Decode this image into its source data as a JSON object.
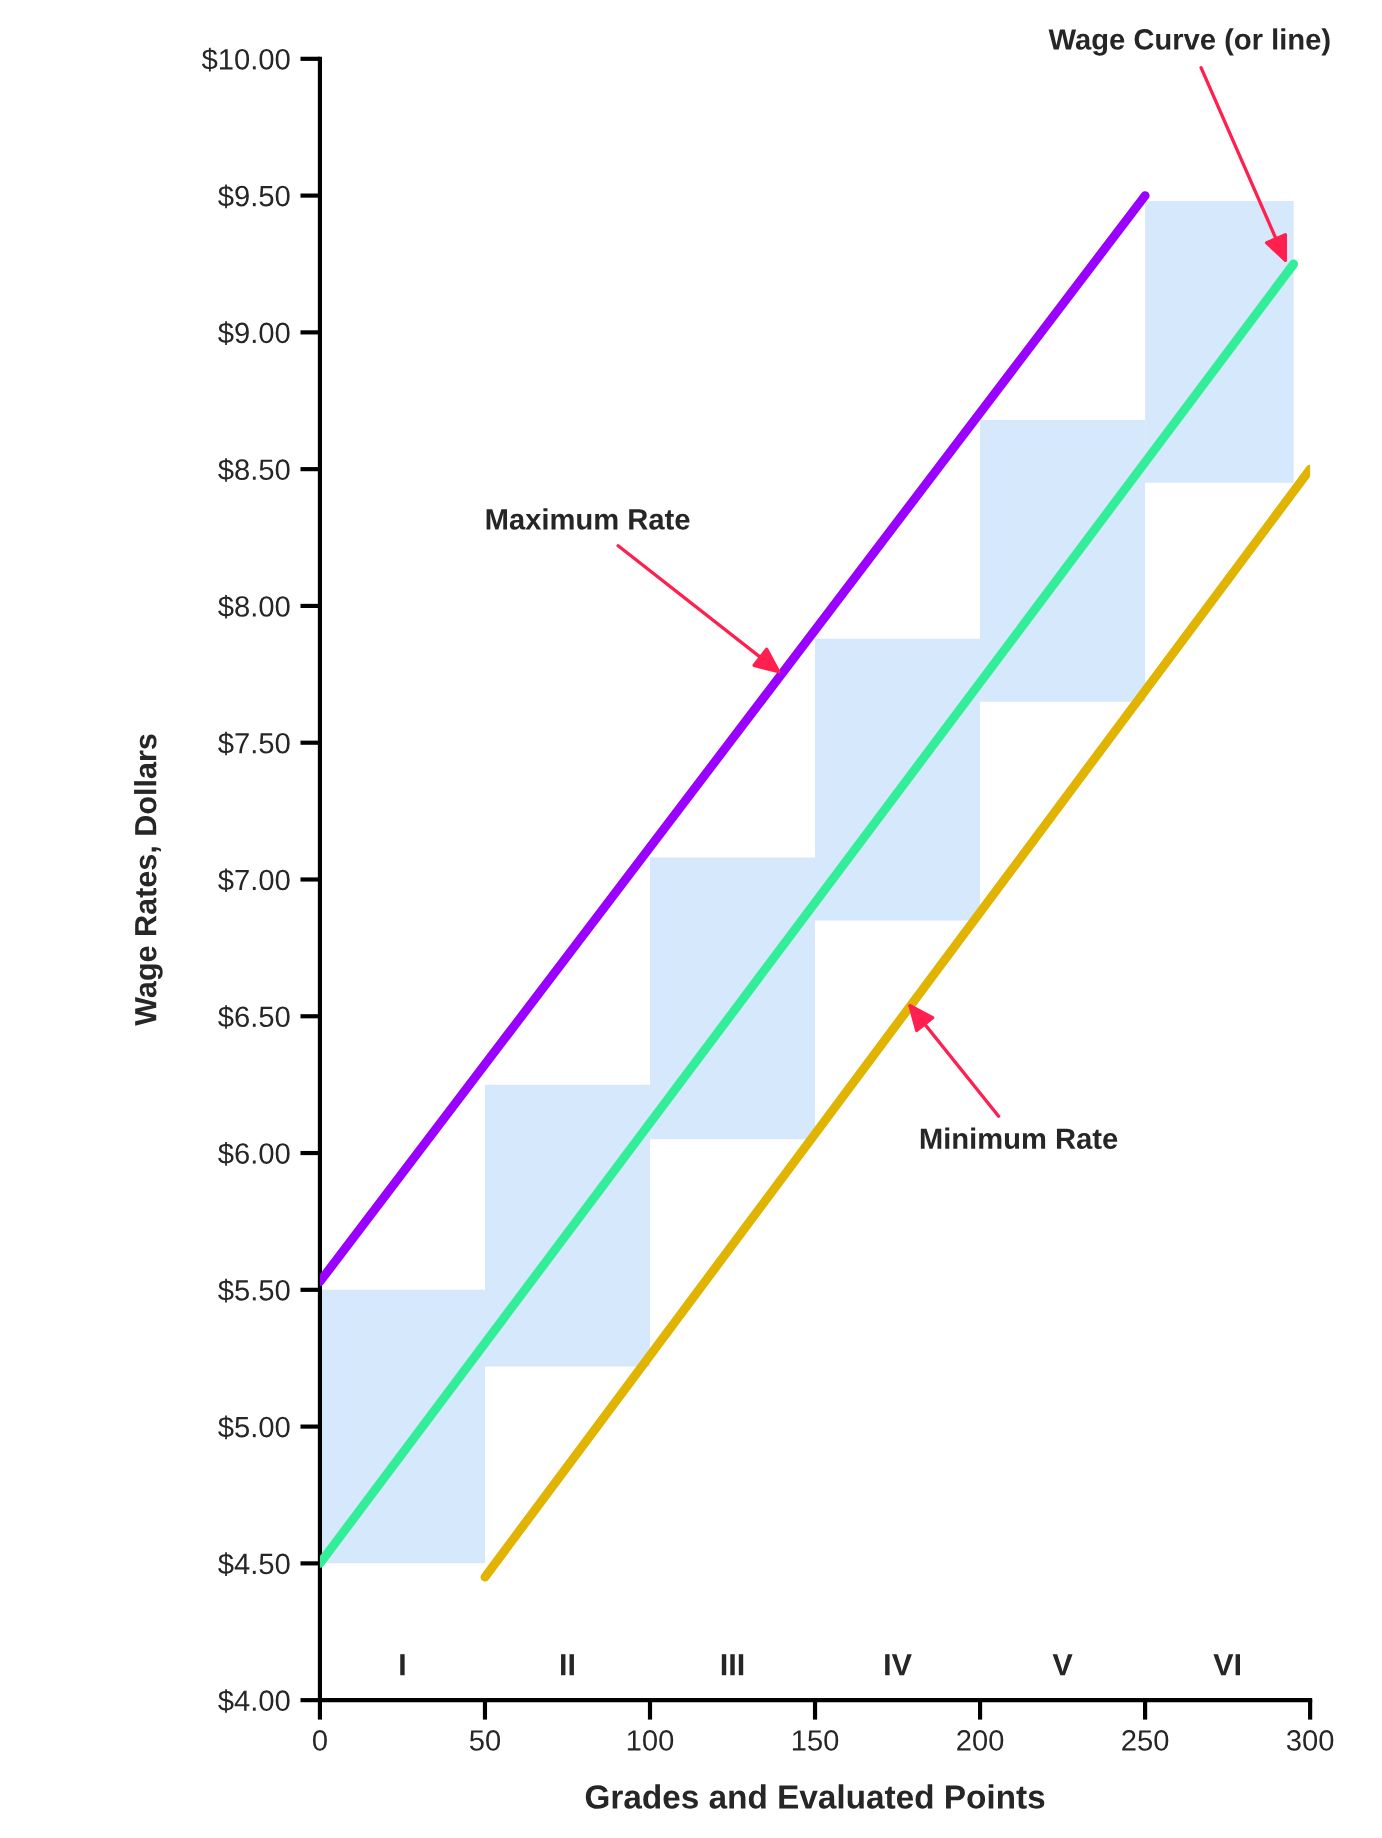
{
  "chart_data": {
    "type": "line",
    "xlabel": "Grades and Evaluated Points",
    "ylabel": "Wage Rates, Dollars",
    "xlim": [
      0,
      300
    ],
    "ylim": [
      4,
      10
    ],
    "xticks": [
      0,
      50,
      100,
      150,
      200,
      250,
      300
    ],
    "yticks": [
      {
        "value": 4,
        "label": "$4.00"
      },
      {
        "value": 4.5,
        "label": "$4.50"
      },
      {
        "value": 5,
        "label": "$5.00"
      },
      {
        "value": 5.5,
        "label": "$5.50"
      },
      {
        "value": 6,
        "label": "$6.00"
      },
      {
        "value": 6.5,
        "label": "$6.50"
      },
      {
        "value": 7,
        "label": "$7.00"
      },
      {
        "value": 7.5,
        "label": "$7.50"
      },
      {
        "value": 8,
        "label": "$8.00"
      },
      {
        "value": 8.5,
        "label": "$8.50"
      },
      {
        "value": 9,
        "label": "$9.00"
      },
      {
        "value": 9.5,
        "label": "$9.50"
      },
      {
        "value": 10,
        "label": "$10.00"
      }
    ],
    "grid": false,
    "legend": false,
    "series": [
      {
        "type": "bar",
        "color": "#d6e8fb",
        "x": [
          25,
          75,
          125,
          175,
          225,
          272.5
        ],
        "base": [
          4.5,
          5.22,
          6.05,
          6.85,
          7.65,
          8.45
        ],
        "values": [
          1.0,
          1.03,
          1.03,
          1.03,
          1.03,
          1.03
        ]
      },
      {
        "color": "#9900ff",
        "x": [
          0,
          250
        ],
        "values": [
          5.53,
          9.5
        ]
      },
      {
        "color": "#33ee99",
        "x": [
          0,
          295
        ],
        "values": [
          4.5,
          9.25
        ]
      },
      {
        "color": "#e0b400",
        "x": [
          50,
          300
        ],
        "values": [
          4.45,
          8.5
        ]
      }
    ],
    "annotations": [
      {
        "text": "Maximum Rate",
        "x": 140,
        "y": 7.75
      },
      {
        "text": "Wage Curve (or line)",
        "x": 293,
        "y": 9.25
      },
      {
        "text": "Minimum Rate",
        "x": 178,
        "y": 6.55
      },
      "I",
      "II",
      "III",
      "IV",
      "V",
      "VI"
    ]
  }
}
